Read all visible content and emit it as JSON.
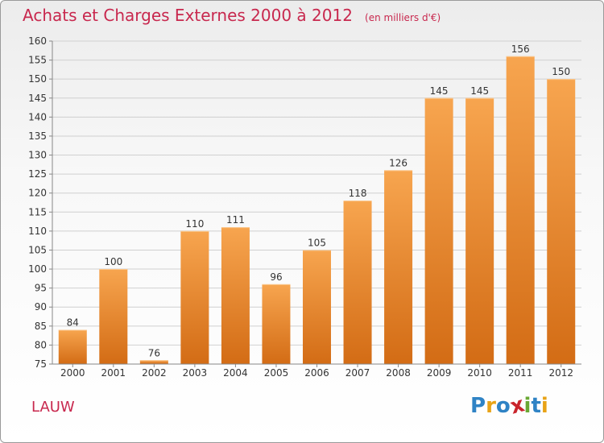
{
  "header": {
    "title": "Achats et Charges Externes 2000 à 2012",
    "subtitle": "(en milliers d'€)"
  },
  "commune": "LAUW",
  "logo": {
    "text": "Proxiti",
    "letters": [
      "P",
      "r",
      "o",
      "x",
      "i",
      "t",
      "i"
    ],
    "colors": [
      "#2f83c5",
      "#e8a317",
      "#2f83c5",
      "#c9242c",
      "#6aa835",
      "#2f83c5",
      "#e8a317"
    ]
  },
  "colors": {
    "accent": "#c8284e",
    "bar_top": "#f7a54f",
    "bar_bottom": "#d36c15",
    "grid": "#d0d0d0"
  },
  "chart_data": {
    "type": "bar",
    "categories": [
      "2000",
      "2001",
      "2002",
      "2003",
      "2004",
      "2005",
      "2006",
      "2007",
      "2008",
      "2009",
      "2010",
      "2011",
      "2012"
    ],
    "values": [
      84,
      100,
      76,
      110,
      111,
      96,
      105,
      118,
      126,
      145,
      145,
      156,
      150
    ],
    "data_labels": [
      "84",
      "100",
      "76",
      "110",
      "111",
      "96",
      "105",
      "118",
      "126",
      "145",
      "145",
      "156",
      "150"
    ],
    "y_ticks": [
      "75",
      "80",
      "85",
      "90",
      "95",
      "100",
      "105",
      "110",
      "115",
      "120",
      "125",
      "130",
      "135",
      "140",
      "145",
      "150",
      "155",
      "160"
    ],
    "ylim": [
      75,
      160
    ],
    "grid": true,
    "legend": "none"
  }
}
